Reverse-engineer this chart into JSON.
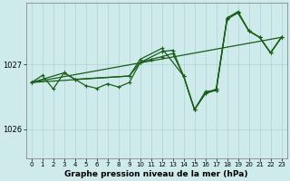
{
  "xlabel": "Graphe pression niveau de la mer (hPa)",
  "background_color": "#ceeaea",
  "grid_color": "#aed4d4",
  "line_color": "#1a5c1a",
  "xlim": [
    -0.5,
    23.5
  ],
  "ylim": [
    1025.55,
    1027.95
  ],
  "yticks": [
    1026,
    1027
  ],
  "xticks": [
    0,
    1,
    2,
    3,
    4,
    5,
    6,
    7,
    8,
    9,
    10,
    11,
    12,
    13,
    14,
    15,
    16,
    17,
    18,
    19,
    20,
    21,
    22,
    23
  ],
  "s1": [
    1026.72,
    1026.83,
    1026.62,
    1026.87,
    1026.77,
    1026.67,
    1026.63,
    1026.7,
    1026.65,
    1026.72,
    1027.03,
    1027.08,
    1027.12,
    1027.17,
    1026.82,
    1026.3,
    1026.58,
    1026.6,
    1027.7,
    1027.8,
    1027.52,
    1027.42,
    1027.18,
    1027.42
  ],
  "s2_x": [
    0,
    3,
    4,
    9,
    10,
    12,
    14,
    15,
    16,
    17,
    18,
    19,
    20,
    21,
    22,
    23
  ],
  "s2_y": [
    1026.72,
    1026.87,
    1026.77,
    1026.82,
    1027.08,
    1027.25,
    1026.82,
    1026.3,
    1026.55,
    1026.62,
    1027.72,
    1027.8,
    1027.52,
    1027.42,
    1027.18,
    1027.42
  ],
  "s3_x": [
    0,
    9,
    10,
    12,
    13,
    14,
    15,
    16,
    17,
    18,
    19,
    20,
    21,
    22,
    23
  ],
  "s3_y": [
    1026.72,
    1026.82,
    1027.03,
    1027.2,
    1027.22,
    1026.82,
    1026.3,
    1026.55,
    1026.6,
    1027.72,
    1027.82,
    1027.52,
    1027.42,
    1027.18,
    1027.42
  ],
  "trend_x": [
    0,
    23
  ],
  "trend_y": [
    1026.72,
    1027.42
  ]
}
